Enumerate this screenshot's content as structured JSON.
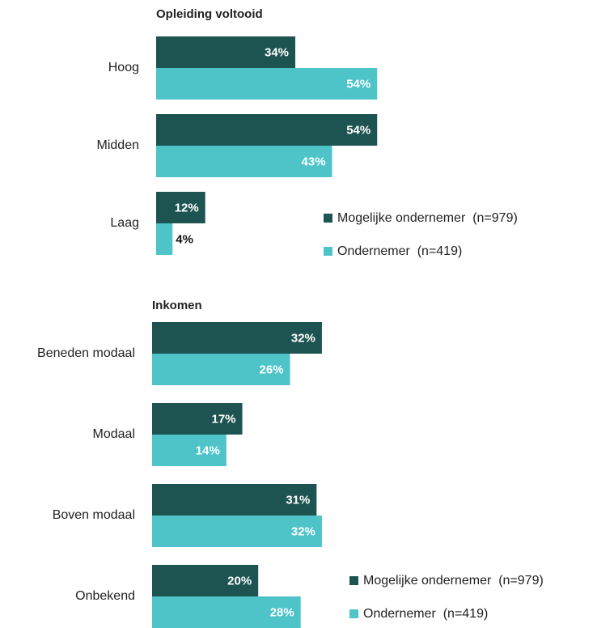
{
  "chart_data": [
    {
      "type": "hbar",
      "title": "Opleiding voltooid",
      "categories": [
        "Hoog",
        "Midden",
        "Laag"
      ],
      "series": [
        {
          "name": "Mogelijke ondernemer  (n=979)",
          "color": "#1d5452",
          "values": [
            34,
            54,
            12
          ],
          "value_labels": [
            "34%",
            "54%",
            "12%"
          ]
        },
        {
          "name": "Ondernemer  (n=419)",
          "color": "#4ec4c9",
          "values": [
            54,
            43,
            4
          ],
          "value_labels": [
            "54%",
            "43%",
            "4%"
          ]
        }
      ],
      "xlim": [
        0,
        100
      ],
      "legend": "right"
    },
    {
      "type": "hbar",
      "title": "Inkomen",
      "categories": [
        "Beneden modaal",
        "Modaal",
        "Boven modaal",
        "Onbekend"
      ],
      "series": [
        {
          "name": "Mogelijke ondernemer  (n=979)",
          "color": "#1d5452",
          "values": [
            32,
            17,
            31,
            20
          ],
          "value_labels": [
            "32%",
            "17%",
            "31%",
            "20%"
          ]
        },
        {
          "name": "Ondernemer  (n=419)",
          "color": "#4ec4c9",
          "values": [
            26,
            14,
            32,
            28
          ],
          "value_labels": [
            "26%",
            "14%",
            "32%",
            "28%"
          ]
        }
      ],
      "xlim": [
        0,
        100
      ],
      "legend": "right"
    }
  ]
}
